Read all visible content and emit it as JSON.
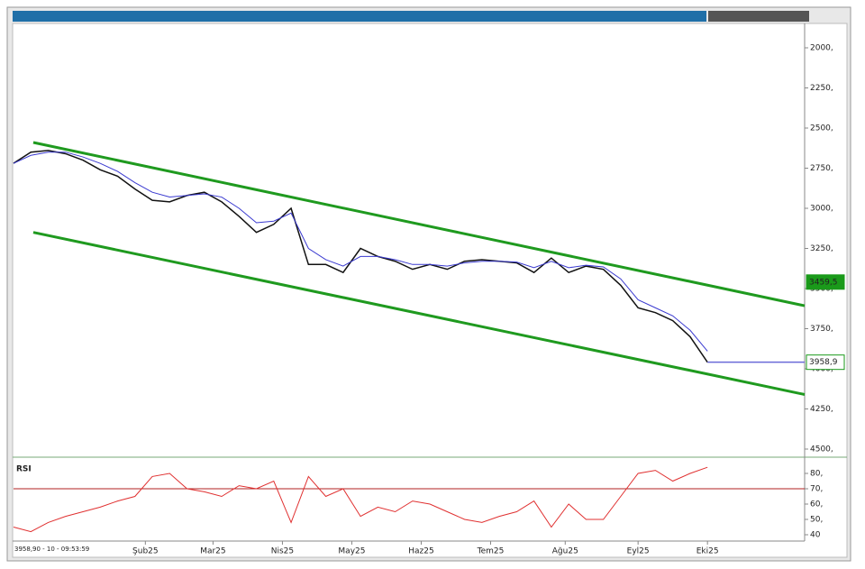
{
  "chart_data": [
    {
      "type": "line",
      "xlim": [
        0,
        45.6
      ],
      "xticks": [
        {
          "value": 7.6,
          "label": "Şub25"
        },
        {
          "value": 11.5,
          "label": "Mar25"
        },
        {
          "value": 15.5,
          "label": "Nis25"
        },
        {
          "value": 19.5,
          "label": "May25"
        },
        {
          "value": 23.5,
          "label": "Haz25"
        },
        {
          "value": 27.5,
          "label": "Tem25"
        },
        {
          "value": 31.8,
          "label": "Ağu25"
        },
        {
          "value": 36,
          "label": "Eyl25"
        },
        {
          "value": 40,
          "label": "Eki25"
        }
      ],
      "ylim": [
        2000,
        4500
      ],
      "yticks": [
        {
          "value": 2000,
          "label": "2000,"
        },
        {
          "value": 2250,
          "label": "2250,"
        },
        {
          "value": 2500,
          "label": "2500,"
        },
        {
          "value": 2750,
          "label": "2750,"
        },
        {
          "value": 3000,
          "label": "3000,"
        },
        {
          "value": 3250,
          "label": "3250,"
        },
        {
          "value": 3500,
          "label": "3500,"
        },
        {
          "value": 3750,
          "label": "3750,"
        },
        {
          "value": 4000,
          "label": "4000,"
        },
        {
          "value": 4250,
          "label": "4250,"
        },
        {
          "value": 4500,
          "label": "4500,"
        }
      ],
      "x": [
        0,
        1,
        2,
        3,
        4,
        5,
        6,
        7,
        8,
        9,
        10,
        11,
        12,
        13,
        14,
        15,
        16,
        17,
        18,
        19,
        20,
        21,
        22,
        23,
        24,
        25,
        26,
        27,
        28,
        29,
        30,
        31,
        32,
        33,
        34,
        35,
        36,
        37,
        38,
        39,
        40
      ],
      "series": [
        {
          "color": "#111111",
          "values": [
            2720,
            2650,
            2640,
            2660,
            2700,
            2760,
            2800,
            2880,
            2950,
            2960,
            2920,
            2900,
            2960,
            3050,
            3150,
            3100,
            3000,
            3350,
            3350,
            3400,
            3250,
            3300,
            3330,
            3380,
            3350,
            3380,
            3330,
            3320,
            3330,
            3340,
            3400,
            3310,
            3400,
            3360,
            3380,
            3480,
            3620,
            3650,
            3700,
            3800,
            3958.9
          ]
        },
        {
          "color": "#3a3ad0",
          "values": [
            2720,
            2670,
            2650,
            2650,
            2680,
            2720,
            2770,
            2840,
            2900,
            2930,
            2920,
            2910,
            2930,
            3000,
            3090,
            3080,
            3030,
            3250,
            3320,
            3360,
            3300,
            3300,
            3320,
            3350,
            3350,
            3360,
            3340,
            3330,
            3330,
            3335,
            3370,
            3330,
            3370,
            3355,
            3365,
            3440,
            3570,
            3620,
            3670,
            3760,
            3890
          ]
        }
      ],
      "trend_lines": [
        {
          "color": "#1f9a1f",
          "x": [
            1.14,
            45.6
          ],
          "values": [
            3150,
            4160
          ]
        },
        {
          "color": "#1f9a1f",
          "x": [
            1.14,
            45.6
          ],
          "values": [
            2590,
            3607
          ]
        }
      ],
      "price_labels": [
        {
          "value": 3958.9,
          "label": "3958,9",
          "color": "#ffffff"
        },
        {
          "value": 3459.5,
          "label": "3459,5",
          "color": "#1a9a1a"
        }
      ]
    },
    {
      "type": "line",
      "title": "RSI",
      "ylim": [
        40,
        84
      ],
      "yticks": [
        {
          "value": 80,
          "label": "80,"
        },
        {
          "value": 70,
          "label": "70,"
        },
        {
          "value": 60,
          "label": "60,"
        },
        {
          "value": 50,
          "label": "50,"
        },
        40
      ],
      "level": 70,
      "series": [
        {
          "color": "#e03030",
          "values": [
            45,
            42,
            48,
            52,
            55,
            58,
            62,
            65,
            78,
            80,
            70,
            68,
            65,
            72,
            70,
            75,
            48,
            78,
            65,
            70,
            52,
            58,
            55,
            62,
            60,
            55,
            50,
            48,
            52,
            55,
            62,
            45,
            60,
            50,
            50,
            65,
            80,
            82,
            75,
            80,
            84
          ]
        }
      ]
    }
  ],
  "status": "3958,90 - 10 - 09:53:59"
}
